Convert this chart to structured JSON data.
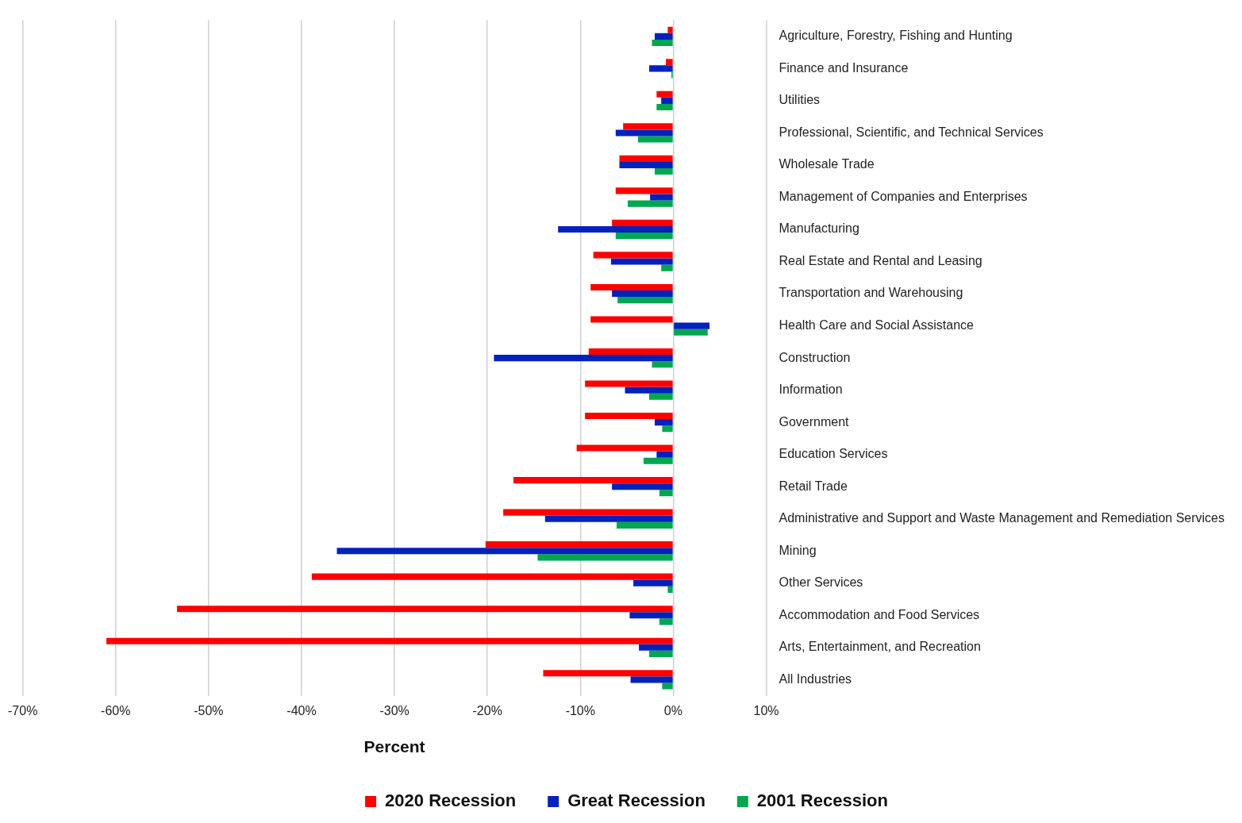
{
  "chart_data": {
    "type": "bar",
    "orientation": "horizontal",
    "xlabel": "Percent",
    "categories": [
      "Agriculture, Forestry, Fishing and Hunting",
      "Finance and Insurance",
      "Utilities",
      "Professional, Scientific, and Technical Services",
      "Wholesale Trade",
      "Management of Companies and Enterprises",
      "Manufacturing",
      "Real Estate and Rental and Leasing",
      "Transportation and Warehousing",
      "Health Care and Social Assistance",
      "Construction",
      "Information",
      "Government",
      "Education Services",
      "Retail Trade",
      "Administrative and Support and Waste Management and Remediation Services",
      "Mining",
      "Other Services",
      "Accommodation and Food Services",
      "Arts, Entertainment, and Recreation",
      "All Industries"
    ],
    "series": [
      {
        "name": "2020 Recession",
        "color": "#ff0000",
        "values": [
          -0.6,
          -0.8,
          -1.8,
          -5.4,
          -5.8,
          -6.2,
          -6.6,
          -8.6,
          -8.9,
          -8.9,
          -9.1,
          -9.5,
          -9.5,
          -10.4,
          -17.2,
          -18.3,
          -20.2,
          -38.9,
          -53.4,
          -61.0,
          -14.0
        ]
      },
      {
        "name": "Great Recession",
        "color": "#0022bb",
        "values": [
          -2.0,
          -2.6,
          -1.3,
          -6.2,
          -5.8,
          -2.5,
          -12.4,
          -6.7,
          -6.6,
          3.9,
          -19.3,
          -5.2,
          -2.0,
          -1.8,
          -6.6,
          -13.8,
          -36.2,
          -4.3,
          -4.7,
          -3.7,
          -4.6
        ]
      },
      {
        "name": "2001 Recession",
        "color": "#00a650",
        "values": [
          -2.3,
          -0.2,
          -1.8,
          -3.8,
          -2.0,
          -4.9,
          -6.2,
          -1.3,
          -6.0,
          3.7,
          -2.3,
          -2.6,
          -1.2,
          -3.2,
          -1.5,
          -6.1,
          -14.6,
          -0.6,
          -1.5,
          -2.6,
          -1.2
        ]
      }
    ],
    "xlim": [
      -70,
      10
    ],
    "xticks": [
      {
        "value": -70,
        "label": "-70%"
      },
      {
        "value": -60,
        "label": "-60%"
      },
      {
        "value": -50,
        "label": "-50%"
      },
      {
        "value": -40,
        "label": "-40%"
      },
      {
        "value": -30,
        "label": "-30%"
      },
      {
        "value": -20,
        "label": "-20%"
      },
      {
        "value": -10,
        "label": "-10%"
      },
      {
        "value": 0,
        "label": "0%"
      },
      {
        "value": 10,
        "label": "10%"
      }
    ],
    "grid": "x",
    "legend": "bottom"
  }
}
